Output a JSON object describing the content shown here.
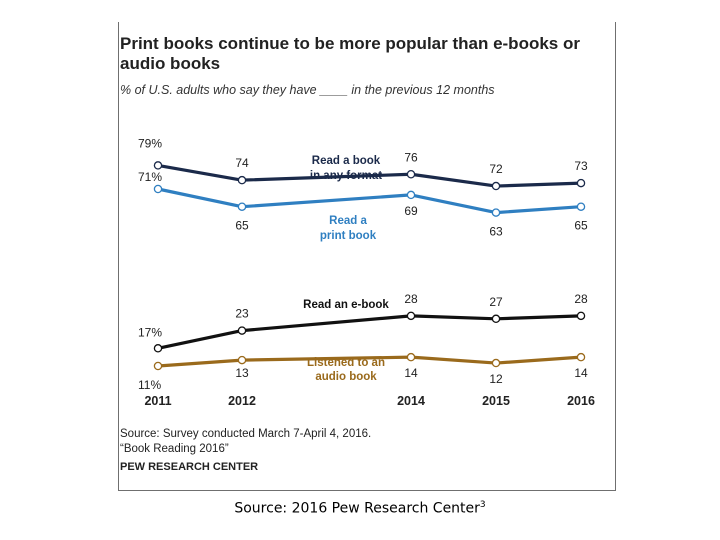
{
  "chart_data": {
    "type": "line",
    "title": "Print books continue to be more popular than e-books or audio books",
    "subtitle": "% of U.S. adults who say they have ____ in the previous 12 months",
    "x": [
      "2011",
      "2012",
      "2014",
      "2015",
      "2016"
    ],
    "ylim": [
      0,
      100
    ],
    "grid": false,
    "series": [
      {
        "name_lines": [
          "Read a book",
          "in any format"
        ],
        "values": [
          79,
          74,
          76,
          72,
          73
        ],
        "labels": [
          "79%",
          "74",
          "76",
          "72",
          "73"
        ],
        "color": "#1b2a4a"
      },
      {
        "name_lines": [
          "Read a",
          "print book"
        ],
        "values": [
          71,
          65,
          69,
          63,
          65
        ],
        "labels": [
          "71%",
          "65",
          "69",
          "63",
          "65"
        ],
        "color": "#2f7fc1"
      },
      {
        "name_lines": [
          "Read an e-book"
        ],
        "values": [
          17,
          23,
          28,
          27,
          28
        ],
        "labels": [
          "17%",
          "23",
          "28",
          "27",
          "28"
        ],
        "color": "#111111"
      },
      {
        "name_lines": [
          "Listened to an",
          "audio book"
        ],
        "values": [
          11,
          13,
          14,
          12,
          14
        ],
        "labels": [
          "11%",
          "13",
          "14",
          "12",
          "14"
        ],
        "color": "#9a6a1c"
      }
    ]
  },
  "source": {
    "line1": "Source: Survey conducted March 7-April 4, 2016.",
    "line2": "“Book Reading 2016”",
    "org": "PEW RESEARCH CENTER"
  },
  "caption": {
    "text": "Source: 2016 Pew Research Center",
    "footnote_mark": "3"
  }
}
